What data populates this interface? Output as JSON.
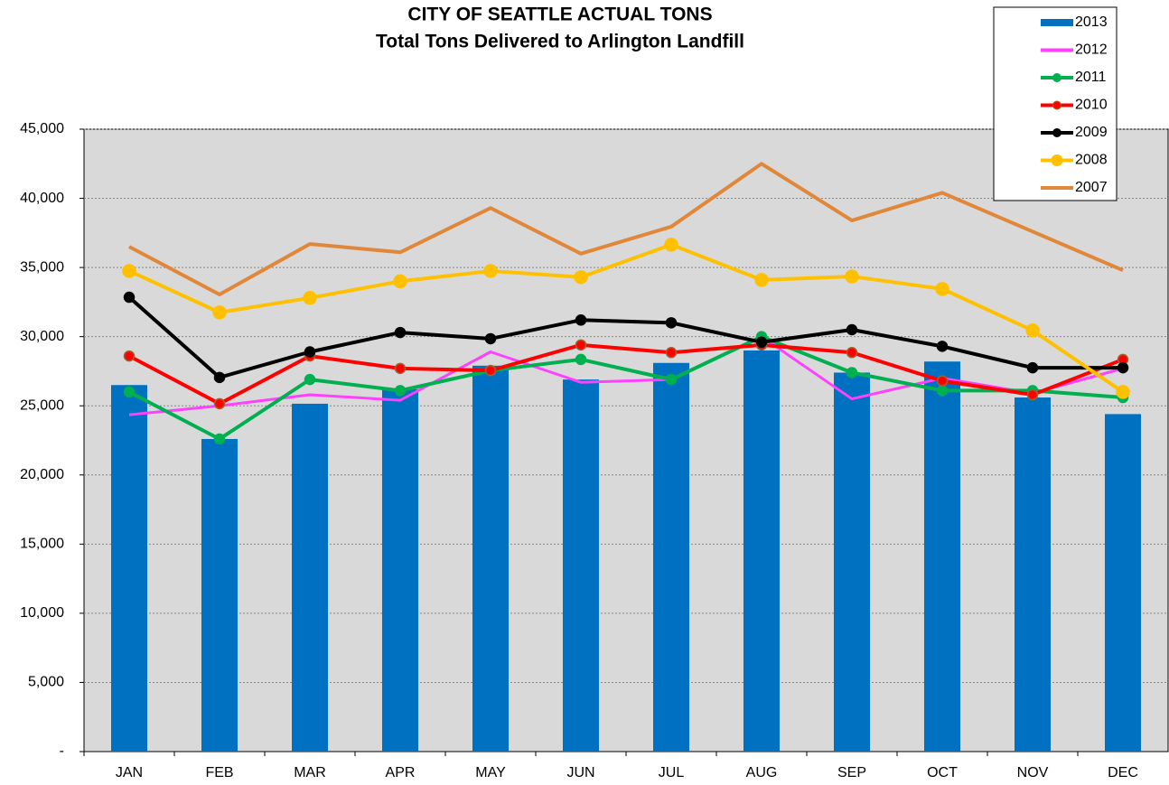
{
  "chart_data": {
    "type": "combo",
    "title": "CITY OF SEATTLE ACTUAL TONS",
    "subtitle": "Total Tons Delivered to Arlington Landfill",
    "categories": [
      "JAN",
      "FEB",
      "MAR",
      "APR",
      "MAY",
      "JUN",
      "JUL",
      "AUG",
      "SEP",
      "OCT",
      "NOV",
      "DEC"
    ],
    "ylim": [
      0,
      45000
    ],
    "yticks": [
      {
        "value": 0,
        "label": "-"
      },
      {
        "value": 5000,
        "label": "5,000"
      },
      {
        "value": 10000,
        "label": "10,000"
      },
      {
        "value": 15000,
        "label": "15,000"
      },
      {
        "value": 20000,
        "label": "20,000"
      },
      {
        "value": 25000,
        "label": "25,000"
      },
      {
        "value": 30000,
        "label": "30,000"
      },
      {
        "value": 35000,
        "label": "35,000"
      },
      {
        "value": 40000,
        "label": "40,000"
      },
      {
        "value": 45000,
        "label": "45,000"
      }
    ],
    "grid": true,
    "legend": "top-right",
    "series": [
      {
        "name": "2013",
        "type": "bar",
        "color": "#0070c0",
        "values": [
          26500,
          22600,
          25150,
          26200,
          27900,
          26900,
          28100,
          29000,
          27400,
          28200,
          25600,
          24400
        ]
      },
      {
        "name": "2012",
        "type": "line",
        "color": "#ff40ff",
        "marker": false,
        "values": [
          24350,
          25000,
          25800,
          25400,
          28900,
          26700,
          26900,
          30000,
          25500,
          27000,
          25900,
          27700
        ]
      },
      {
        "name": "2011",
        "type": "line",
        "color": "#00b050",
        "marker": true,
        "values": [
          26000,
          22600,
          26900,
          26100,
          27550,
          28350,
          26900,
          30000,
          27400,
          26100,
          26100,
          25600
        ]
      },
      {
        "name": "2010",
        "type": "line",
        "color": "#ff0000",
        "marker": true,
        "values": [
          28600,
          25150,
          28600,
          27700,
          27550,
          29400,
          28850,
          29400,
          28850,
          26800,
          25800,
          28350
        ]
      },
      {
        "name": "2009",
        "type": "line",
        "color": "#000000",
        "marker": true,
        "values": [
          32850,
          27050,
          28900,
          30300,
          29850,
          31200,
          31000,
          29600,
          30500,
          29300,
          27750,
          27750
        ]
      },
      {
        "name": "2008",
        "type": "line",
        "color": "#ffc000",
        "marker": true,
        "values": [
          34750,
          31750,
          32800,
          34000,
          34750,
          34300,
          36650,
          34100,
          34350,
          33450,
          30450,
          26000
        ]
      },
      {
        "name": "2007",
        "type": "line",
        "color": "#e0873a",
        "marker": false,
        "values": [
          36500,
          33050,
          36700,
          36100,
          39300,
          36000,
          37950,
          42500,
          38400,
          40400,
          37600,
          34800
        ]
      }
    ]
  }
}
